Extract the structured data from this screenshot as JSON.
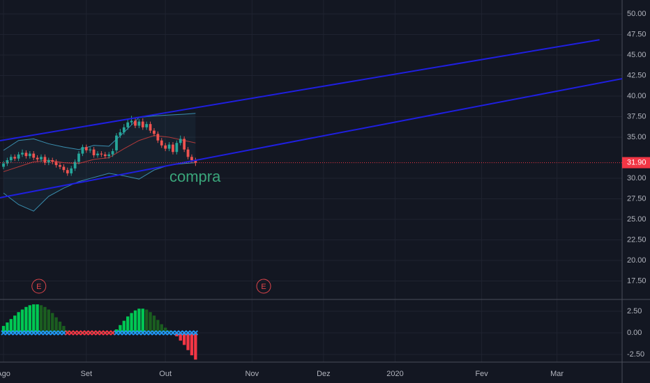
{
  "chart_data": [
    {
      "type": "candlestick",
      "open": [
        31.4,
        31.8,
        32.2,
        32.6,
        32.4,
        32.9,
        33.1,
        32.7,
        33.0,
        32.5,
        32.3,
        32.6,
        31.9,
        32.2,
        32.0,
        31.6,
        31.4,
        31.0,
        30.6,
        31.2,
        32.0,
        33.0,
        33.8,
        33.4,
        33.5,
        32.8,
        33.0,
        32.9,
        32.7,
        32.9,
        33.4,
        35.2,
        35.6,
        36.2,
        36.8,
        37.0,
        36.4,
        36.9,
        36.2,
        36.6,
        35.8,
        35.4,
        34.6,
        34.0,
        33.6,
        34.1,
        33.2,
        34.3,
        34.8,
        33.5,
        32.6,
        32.2
      ],
      "high": [
        32.1,
        32.5,
        32.9,
        32.9,
        33.2,
        33.5,
        33.4,
        33.3,
        33.3,
        32.8,
        32.9,
        32.9,
        32.5,
        32.5,
        32.3,
        31.9,
        31.7,
        31.3,
        31.5,
        32.3,
        33.3,
        34.1,
        34.1,
        33.8,
        33.8,
        33.3,
        33.3,
        33.2,
        33.2,
        33.6,
        35.5,
        36.0,
        36.6,
        37.2,
        37.6,
        37.4,
        37.2,
        37.3,
        36.9,
        36.9,
        36.1,
        35.7,
        34.9,
        34.3,
        34.4,
        34.4,
        34.6,
        35.2,
        35.1,
        33.8,
        32.9,
        32.5
      ],
      "low": [
        31.1,
        31.5,
        31.9,
        32.1,
        32.1,
        32.6,
        32.4,
        32.4,
        32.2,
        32.0,
        32.0,
        31.6,
        31.6,
        31.7,
        31.3,
        31.1,
        30.7,
        30.3,
        30.3,
        30.9,
        31.7,
        32.7,
        33.1,
        33.1,
        32.5,
        32.5,
        32.6,
        32.4,
        32.4,
        32.6,
        33.1,
        34.9,
        35.3,
        35.9,
        36.5,
        36.1,
        36.1,
        35.9,
        35.9,
        35.5,
        35.1,
        34.3,
        33.7,
        33.3,
        33.3,
        32.9,
        32.9,
        34.0,
        33.2,
        32.3,
        31.9,
        31.5
      ],
      "close": [
        31.8,
        32.2,
        32.6,
        32.4,
        32.9,
        33.1,
        32.7,
        33.0,
        32.5,
        32.3,
        32.6,
        31.9,
        32.2,
        32.0,
        31.6,
        31.4,
        31.0,
        30.6,
        31.2,
        32.0,
        33.0,
        33.8,
        33.4,
        33.5,
        32.8,
        33.0,
        32.9,
        32.7,
        32.9,
        33.3,
        35.2,
        35.6,
        36.2,
        36.8,
        37.0,
        36.4,
        36.9,
        36.2,
        36.6,
        35.8,
        35.4,
        34.6,
        34.0,
        33.6,
        34.1,
        33.2,
        34.3,
        34.8,
        33.5,
        32.6,
        32.2,
        31.9
      ],
      "up_color": "#26a69a",
      "down_color": "#ef5350",
      "bands": {
        "x": [
          0,
          4,
          8,
          12,
          16,
          20,
          24,
          28,
          32,
          36,
          40,
          44,
          48,
          51
        ],
        "upper": [
          33.4,
          34.6,
          34.8,
          34.2,
          33.8,
          33.5,
          34.0,
          33.9,
          35.6,
          37.4,
          37.6,
          37.7,
          37.8,
          37.9
        ],
        "middle": [
          30.8,
          31.4,
          32.0,
          32.2,
          31.9,
          31.8,
          32.3,
          32.5,
          33.6,
          34.6,
          35.2,
          35.0,
          34.6,
          34.3
        ],
        "lower": [
          28.2,
          26.8,
          26.0,
          27.8,
          28.8,
          29.6,
          30.1,
          30.6,
          30.3,
          29.9,
          31.0,
          31.6,
          31.8,
          31.9
        ],
        "band_color": "#3a8fb0",
        "middle_color": "#b23a3a"
      },
      "trendlines": [
        {
          "x": [
            -0.93,
            158.3
          ],
          "y": [
            34.58,
            46.86
          ]
        },
        {
          "x": [
            -0.93,
            164.3
          ],
          "y": [
            27.63,
            42.12
          ]
        }
      ],
      "trendline_color": "#1f1fe0",
      "last_price": {
        "value": 31.9,
        "label": "31.90"
      },
      "last_price_color": "#f23645",
      "annotation": "compra",
      "annotation_color": "#3aa57a",
      "earnings": [
        {
          "x": 9.4,
          "label": "E"
        },
        {
          "x": 69.1,
          "label": "E"
        }
      ],
      "earnings_color": "#e0454b",
      "xlim": [
        -0.93,
        164.3
      ],
      "xticks": [
        {
          "value": 0,
          "label": "Ago"
        },
        {
          "value": 22,
          "label": "Set"
        },
        {
          "value": 43,
          "label": "Out"
        },
        {
          "value": 66,
          "label": "Nov"
        },
        {
          "value": 85,
          "label": "Dez"
        },
        {
          "value": 104,
          "label": "2020"
        },
        {
          "value": 127,
          "label": "Fev"
        },
        {
          "value": 147,
          "label": "Mar"
        }
      ],
      "ylim": [
        15.25,
        51.7
      ],
      "yticks": [
        {
          "value": 50,
          "label": "50.00"
        },
        {
          "value": 47.5,
          "label": "47.50"
        },
        {
          "value": 45,
          "label": "45.00"
        },
        {
          "value": 42.5,
          "label": "42.50"
        },
        {
          "value": 40,
          "label": "40.00"
        },
        {
          "value": 37.5,
          "label": "37.50"
        },
        {
          "value": 35,
          "label": "35.00"
        },
        {
          "value": 30,
          "label": "30.00"
        },
        {
          "value": 27.5,
          "label": "27.50"
        },
        {
          "value": 25,
          "label": "25.00"
        },
        {
          "value": 22.5,
          "label": "22.50"
        },
        {
          "value": 20,
          "label": "20.00"
        },
        {
          "value": 17.5,
          "label": "17.50"
        }
      ],
      "grid": true
    },
    {
      "type": "histogram-oscillator",
      "values": [
        0.8,
        1.2,
        1.6,
        2.0,
        2.4,
        2.7,
        3.0,
        3.2,
        3.3,
        3.3,
        3.2,
        3.0,
        2.7,
        2.3,
        1.8,
        1.3,
        0.8,
        0.3,
        0.1,
        0.05,
        0.1,
        0.1,
        0.1,
        0.1,
        0.1,
        0.1,
        0.1,
        0.1,
        0.1,
        0.1,
        0.4,
        0.9,
        1.4,
        1.9,
        2.3,
        2.6,
        2.8,
        2.8,
        2.7,
        2.4,
        2.0,
        1.5,
        1.0,
        0.6,
        0.3,
        0.2,
        -0.4,
        -0.9,
        -1.4,
        -2.0,
        -2.6,
        -3.1
      ],
      "colors": {
        "pos_up": "#00c853",
        "pos_down": "#1b5e20",
        "neg_down": "#f23645",
        "neg_up": "#801922"
      },
      "squeeze": [
        {
          "from": 0,
          "to": 16,
          "color": "#2196f3"
        },
        {
          "from": 17,
          "to": 29,
          "color": "#f23645"
        },
        {
          "from": 30,
          "to": 51,
          "color": "#2196f3"
        }
      ],
      "xlim": [
        -0.93,
        164.3
      ],
      "ylim": [
        -3.39,
        3.87
      ],
      "yticks": [
        {
          "value": 2.5,
          "label": "2.50"
        },
        {
          "value": 0,
          "label": "0.00"
        },
        {
          "value": -2.5,
          "label": "-2.50"
        }
      ],
      "grid": true
    }
  ]
}
